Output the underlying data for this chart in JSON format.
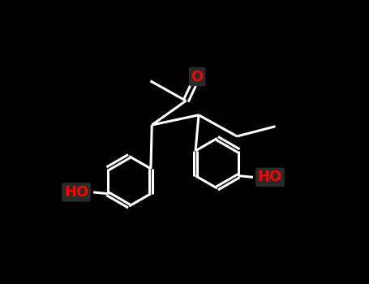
{
  "background_color": "#000000",
  "bond_color": "#ffffff",
  "O_color": "#ff0000",
  "HO_color": "#ff0000",
  "atom_bg_color": "#2a2a2a",
  "line_width": 2.2,
  "font_size_O": 13,
  "font_size_HO": 13,
  "figsize": [
    4.55,
    3.5
  ],
  "dpi": 100,
  "xlim": [
    0,
    10
  ],
  "ylim": [
    0,
    10
  ]
}
